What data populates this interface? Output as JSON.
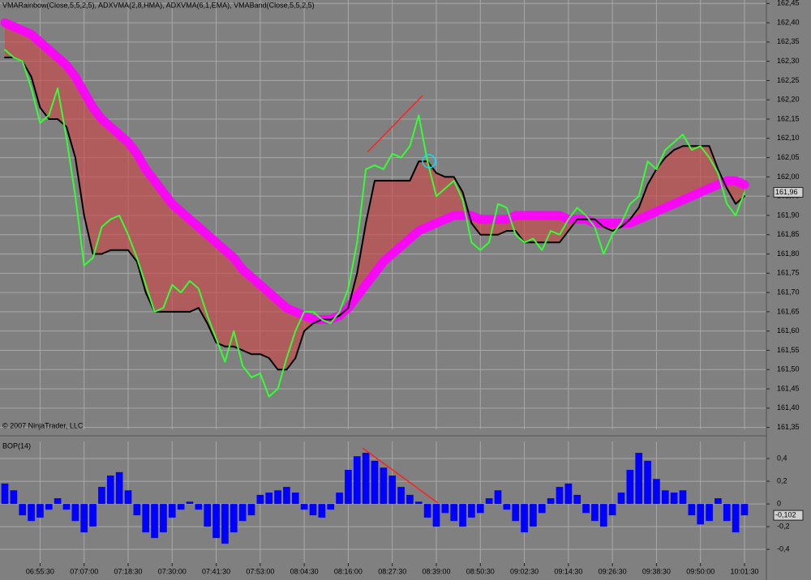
{
  "chart_data": [
    {
      "type": "line",
      "title": "VMARainbow(Close,5,5,2,5), ADXVMA(2,8,HMA), ADXVMA(6,1,EMA), VMABand(Close,5,5,2,5)",
      "watermark": "© 2007 NinjaTrader, LLC",
      "last_label": "161,96",
      "ylim": [
        161.345,
        162.459
      ],
      "yticks": [
        {
          "value": 162.45,
          "label": "162,45"
        },
        {
          "value": 162.4,
          "label": "162,40"
        },
        {
          "value": 162.35,
          "label": "162,35"
        },
        {
          "value": 162.3,
          "label": "162,30"
        },
        {
          "value": 162.25,
          "label": "162,25"
        },
        {
          "value": 162.2,
          "label": "162,20"
        },
        {
          "value": 162.15,
          "label": "162,15"
        },
        {
          "value": 162.1,
          "label": "162,10"
        },
        {
          "value": 162.05,
          "label": "162,05"
        },
        {
          "value": 162,
          "label": "162,00"
        },
        {
          "value": 161.95,
          "label": "161,95"
        },
        {
          "value": 161.9,
          "label": "161,90"
        },
        {
          "value": 161.85,
          "label": "161,85"
        },
        {
          "value": 161.8,
          "label": "161,80"
        },
        {
          "value": 161.75,
          "label": "161,75"
        },
        {
          "value": 161.7,
          "label": "161,70"
        },
        {
          "value": 161.65,
          "label": "161,65"
        },
        {
          "value": 161.6,
          "label": "161,60"
        },
        {
          "value": 161.55,
          "label": "161,55"
        },
        {
          "value": 161.5,
          "label": "161,50"
        },
        {
          "value": 161.45,
          "label": "161,45"
        },
        {
          "value": 161.4,
          "label": "161,40"
        },
        {
          "value": 161.35,
          "label": "161,35"
        }
      ],
      "grid": true,
      "series": [
        {
          "color": "#ff00ff",
          "values": [
            162.4,
            162.39,
            162.38,
            162.37,
            162.35,
            162.33,
            162.31,
            162.29,
            162.26,
            162.22,
            162.18,
            162.15,
            162.13,
            162.11,
            162.09,
            162.06,
            162.02,
            161.99,
            161.96,
            161.93,
            161.91,
            161.89,
            161.87,
            161.85,
            161.83,
            161.81,
            161.79,
            161.76,
            161.74,
            161.72,
            161.7,
            161.68,
            161.66,
            161.65,
            161.64,
            161.63,
            161.63,
            161.63,
            161.64,
            161.66,
            161.69,
            161.72,
            161.75,
            161.78,
            161.8,
            161.82,
            161.84,
            161.86,
            161.87,
            161.88,
            161.89,
            161.9,
            161.9,
            161.9,
            161.89,
            161.89,
            161.89,
            161.89,
            161.9,
            161.9,
            161.9,
            161.9,
            161.9,
            161.9,
            161.89,
            161.89,
            161.89,
            161.88,
            161.88,
            161.88,
            161.88,
            161.88,
            161.89,
            161.9,
            161.91,
            161.92,
            161.93,
            161.94,
            161.95,
            161.96,
            161.97,
            161.98,
            161.99,
            161.99,
            161.98
          ]
        },
        {
          "color": "#000000",
          "values": [
            162.31,
            162.31,
            162.3,
            162.26,
            162.18,
            162.15,
            162.15,
            162.13,
            162.05,
            161.9,
            161.8,
            161.8,
            161.81,
            161.81,
            161.81,
            161.78,
            161.7,
            161.65,
            161.65,
            161.65,
            161.65,
            161.65,
            161.66,
            161.62,
            161.57,
            161.56,
            161.56,
            161.55,
            161.54,
            161.54,
            161.53,
            161.5,
            161.5,
            161.53,
            161.6,
            161.62,
            161.63,
            161.63,
            161.64,
            161.66,
            161.75,
            161.88,
            161.99,
            161.99,
            161.99,
            161.99,
            161.99,
            162.04,
            162.04,
            162.01,
            162.0,
            162.0,
            161.96,
            161.88,
            161.85,
            161.85,
            161.85,
            161.86,
            161.86,
            161.83,
            161.83,
            161.83,
            161.83,
            161.83,
            161.86,
            161.89,
            161.89,
            161.89,
            161.87,
            161.86,
            161.87,
            161.89,
            161.92,
            161.98,
            162.02,
            162.05,
            162.07,
            162.08,
            162.08,
            162.08,
            162.08,
            162.02,
            161.97,
            161.93,
            161.95
          ]
        },
        {
          "color": "#33ff33",
          "values": [
            162.33,
            162.31,
            162.3,
            162.23,
            162.14,
            162.16,
            162.23,
            162.1,
            161.95,
            161.77,
            161.79,
            161.87,
            161.89,
            161.9,
            161.85,
            161.79,
            161.72,
            161.65,
            161.66,
            161.72,
            161.7,
            161.73,
            161.71,
            161.64,
            161.58,
            161.52,
            161.6,
            161.51,
            161.48,
            161.49,
            161.43,
            161.45,
            161.53,
            161.6,
            161.65,
            161.65,
            161.63,
            161.62,
            161.65,
            161.71,
            161.83,
            162.02,
            162.03,
            162.02,
            162.06,
            162.05,
            162.08,
            162.16,
            162.04,
            161.95,
            161.97,
            161.99,
            161.94,
            161.83,
            161.81,
            161.83,
            161.93,
            161.92,
            161.85,
            161.83,
            161.84,
            161.81,
            161.86,
            161.85,
            161.89,
            161.92,
            161.9,
            161.87,
            161.8,
            161.85,
            161.88,
            161.93,
            161.95,
            162.04,
            162.02,
            162.07,
            162.09,
            162.11,
            162.07,
            162.08,
            162.05,
            162.01,
            161.93,
            161.9,
            161.96
          ]
        }
      ]
    },
    {
      "type": "bar",
      "title": "BOP(14)",
      "last_label": "-0,102",
      "color": "#0000ff",
      "ylim": [
        -0.52,
        0.55
      ],
      "yticks": [
        {
          "value": 0.4,
          "label": "0,4"
        },
        {
          "value": 0.2,
          "label": "0,2"
        },
        0,
        {
          "value": -0.2,
          "label": "-0,2"
        },
        {
          "value": -0.4,
          "label": "-0,4"
        }
      ],
      "grid": true,
      "categories": [
        null,
        null,
        null,
        null,
        "06:55:30",
        null,
        null,
        null,
        null,
        "07:07:00",
        null,
        null,
        null,
        null,
        "07:18:30",
        null,
        null,
        null,
        null,
        "07:30:00",
        null,
        null,
        null,
        null,
        "07:41:30",
        null,
        null,
        null,
        null,
        "07:53:00",
        null,
        null,
        null,
        null,
        "08:04:30",
        null,
        null,
        null,
        null,
        "08:16:00",
        null,
        null,
        null,
        null,
        "08:27:30",
        null,
        null,
        null,
        null,
        "08:39:00",
        null,
        null,
        null,
        null,
        "08:50:30",
        null,
        null,
        null,
        null,
        "09:02:30",
        null,
        null,
        null,
        null,
        "09:14:30",
        null,
        null,
        null,
        null,
        "09:26:30",
        null,
        null,
        null,
        null,
        "09:38:30",
        null,
        null,
        null,
        null,
        "09:50:00",
        null,
        null,
        null,
        null,
        "10:01:30"
      ],
      "values": [
        0.18,
        0.12,
        -0.1,
        -0.15,
        -0.12,
        -0.05,
        0.05,
        -0.05,
        -0.15,
        -0.25,
        -0.2,
        0.15,
        0.25,
        0.28,
        0.12,
        -0.1,
        -0.25,
        -0.3,
        -0.25,
        -0.12,
        -0.05,
        0.02,
        -0.05,
        -0.2,
        -0.3,
        -0.35,
        -0.25,
        -0.15,
        -0.1,
        0.08,
        0.1,
        0.12,
        0.15,
        0.1,
        -0.05,
        -0.1,
        -0.12,
        -0.05,
        0.1,
        0.3,
        0.42,
        0.45,
        0.38,
        0.32,
        0.25,
        0.15,
        0.08,
        0.02,
        -0.12,
        -0.2,
        -0.08,
        -0.15,
        -0.2,
        -0.12,
        -0.08,
        0.05,
        0.12,
        -0.05,
        -0.15,
        -0.25,
        -0.2,
        -0.08,
        0.05,
        0.15,
        0.18,
        0.08,
        -0.08,
        -0.15,
        -0.2,
        -0.1,
        0.1,
        0.3,
        0.45,
        0.38,
        0.22,
        0.12,
        0.1,
        0.12,
        -0.1,
        -0.18,
        -0.15,
        0.05,
        -0.15,
        -0.25,
        -0.1
      ]
    }
  ]
}
